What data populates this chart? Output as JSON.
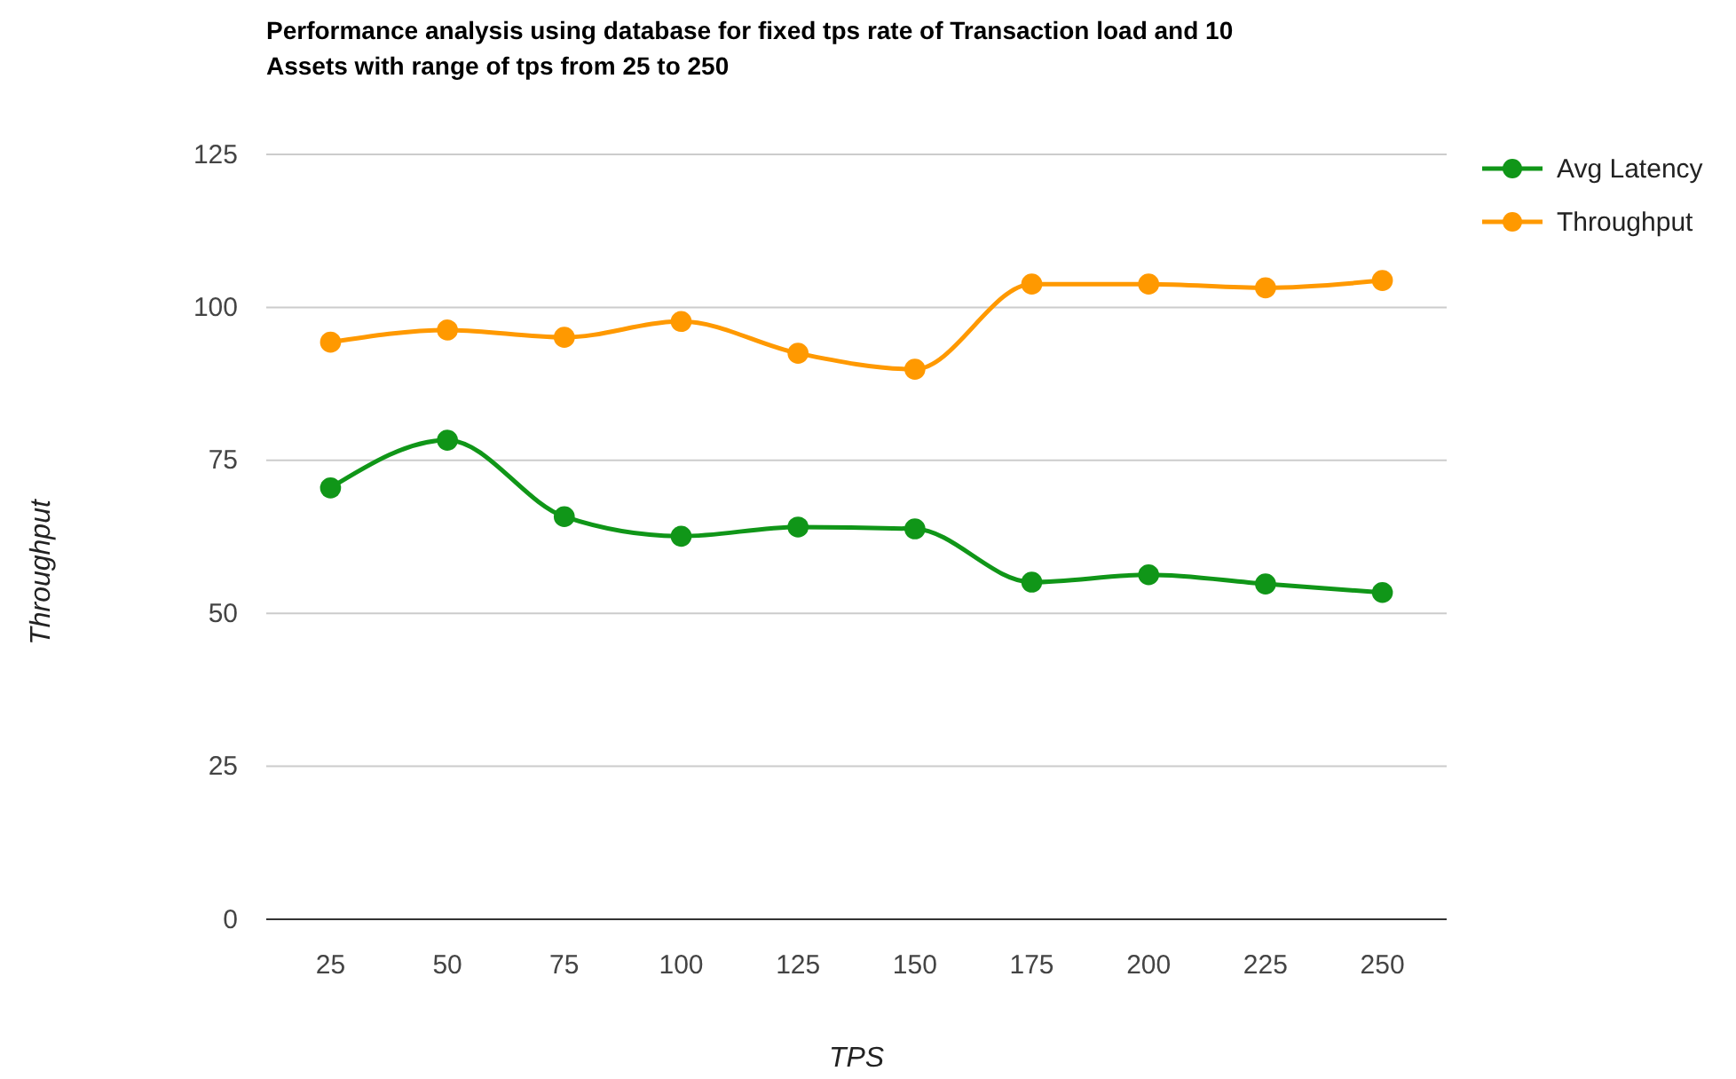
{
  "chart_data": {
    "type": "line",
    "title": "Performance analysis using database for fixed tps rate of Transaction load and 10 Assets with range of tps from 25 to 250",
    "xlabel": "TPS",
    "ylabel": "Throughput",
    "categories": [
      "25",
      "50",
      "75",
      "100",
      "125",
      "150",
      "175",
      "200",
      "225",
      "250"
    ],
    "series": [
      {
        "name": "Avg Latency",
        "color": "#109618",
        "values": [
          70.5,
          78.3,
          65.8,
          62.6,
          64.1,
          63.8,
          55.1,
          56.3,
          54.8,
          53.4
        ]
      },
      {
        "name": "Throughput",
        "color": "#ff9900",
        "values": [
          94.3,
          96.3,
          95.1,
          97.7,
          92.5,
          89.9,
          103.8,
          103.8,
          103.2,
          104.4
        ]
      }
    ],
    "ylim": [
      0,
      125
    ],
    "yticks": [
      0,
      25,
      50,
      75,
      100,
      125
    ],
    "grid": "y",
    "legend": "right",
    "marker": "circle",
    "line_style": "solid"
  }
}
